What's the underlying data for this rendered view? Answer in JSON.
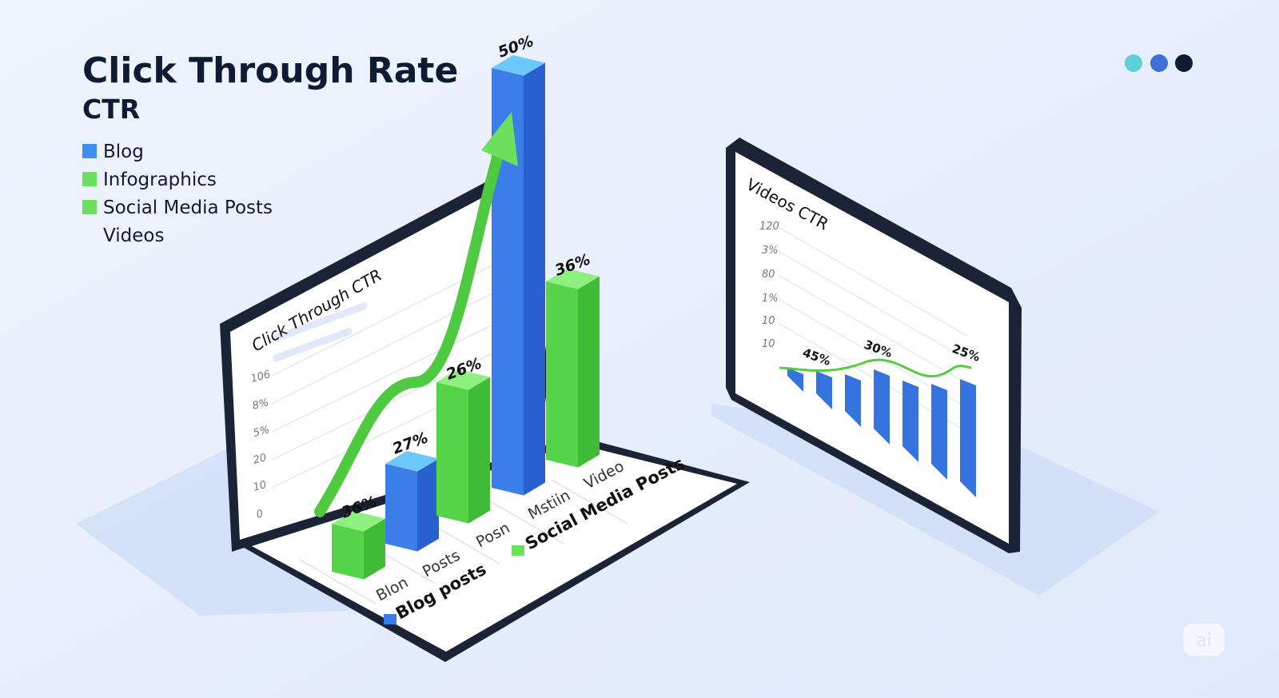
{
  "header": {
    "title": "Click Through Rate",
    "subtitle": "CTR"
  },
  "legend": [
    "Blog",
    "Infographics",
    "Social Media Posts",
    "Videos"
  ],
  "left_panel": {
    "title": "Click Through CTR",
    "axis_labels": [
      "106",
      "8%",
      "5%",
      "20",
      "10",
      "0"
    ],
    "bar_labels": [
      "36%",
      "27%",
      "26%",
      "50%",
      "36%"
    ],
    "category_labels": [
      "Blon",
      "Posts",
      "Posn",
      "Mstiin",
      "Video"
    ],
    "floor_legend": [
      "Blog posts",
      "Social Media Posts"
    ]
  },
  "right_panel": {
    "title": "Videos CTR",
    "axis_labels": [
      "120",
      "3%",
      "80",
      "1%",
      "10",
      "10"
    ],
    "point_labels": [
      "45%",
      "30%",
      "25%"
    ]
  },
  "badge": "ai"
}
